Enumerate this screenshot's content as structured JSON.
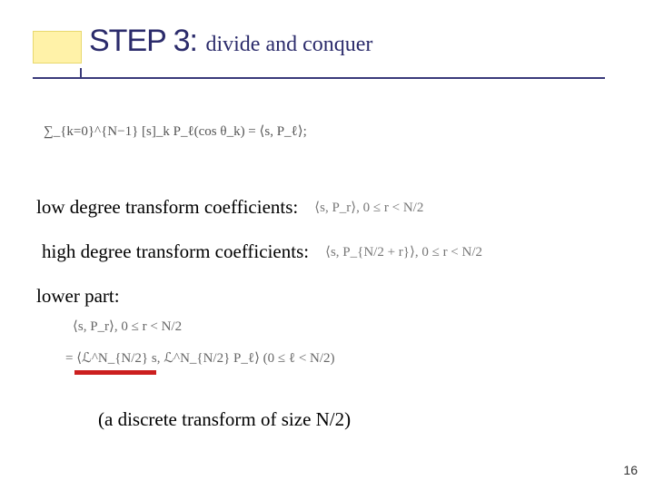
{
  "header": {
    "step_label": "STEP 3:",
    "subtitle": "divide and conquer",
    "accent_box_color": "#fff2a8",
    "rule_color": "#3a3a7a"
  },
  "formula_top": "∑_{k=0}^{N−1} [s]_k P_ℓ(cos θ_k) = ⟨s, P_ℓ⟩;",
  "lines": {
    "low_label": "low degree transform coefficients:",
    "low_math": "⟨s, P_r⟩, 0 ≤ r < N/2",
    "high_label": "high degree transform coefficients:",
    "high_math": "⟨s, P_{N/2 + r}⟩, 0 ≤ r < N/2",
    "lower_part_label": "lower part:"
  },
  "formula_mid": "⟨s, P_r⟩, 0 ≤ r < N/2",
  "formula_bottom": "= ⟨ℒ^N_{N/2} s, ℒ^N_{N/2} P_ℓ⟩    (0 ≤ ℓ < N/2)",
  "underline_color": "#cc1f1f",
  "note": "(a discrete transform of size N/2)",
  "page_number": "16",
  "colors": {
    "background": "#ffffff",
    "title_text": "#2b2b6b",
    "body_text": "#000000",
    "math_text": "#666666"
  },
  "typography": {
    "title_font": "Verdana",
    "title_size_pt": 26,
    "body_font": "Times New Roman",
    "body_size_pt": 16,
    "math_size_pt": 11
  }
}
